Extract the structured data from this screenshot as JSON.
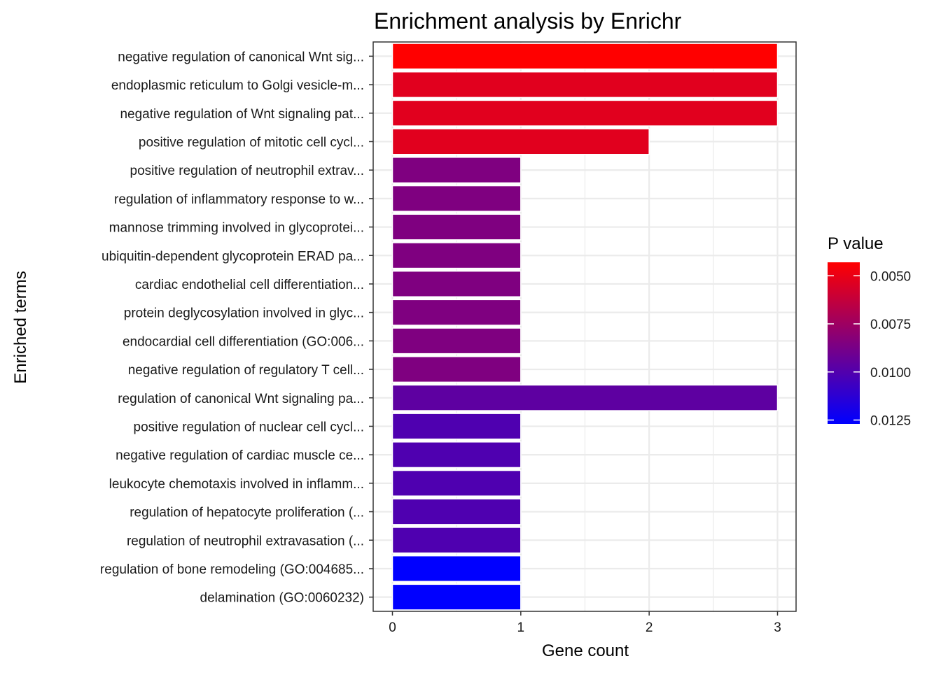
{
  "chart_data": {
    "type": "bar",
    "orientation": "horizontal",
    "title": "Enrichment analysis by Enrichr",
    "xlabel": "Gene count",
    "ylabel": "Enriched terms",
    "xlim": [
      0,
      3
    ],
    "x_ticks": [
      "0",
      "1",
      "2",
      "3"
    ],
    "grid": true,
    "legend": {
      "title": "P value",
      "position": "right",
      "type": "colorbar",
      "range": [
        0.0043,
        0.0127
      ],
      "ticks": [
        "0.0050",
        "0.0075",
        "0.0100",
        "0.0125"
      ],
      "low_color": "#ff0000",
      "high_color": "#0000ff"
    },
    "categories": [
      "negative regulation of canonical Wnt sig...",
      "endoplasmic reticulum to Golgi vesicle-m...",
      "negative regulation of Wnt signaling pat...",
      "positive regulation of mitotic cell cycl...",
      "positive regulation of neutrophil extrav...",
      "regulation of inflammatory response to w...",
      "mannose trimming involved in glycoprotei...",
      "ubiquitin-dependent glycoprotein ERAD pa...",
      "cardiac endothelial cell differentiation...",
      "protein deglycosylation involved in glyc...",
      "endocardial cell differentiation (GO:006...",
      "negative regulation of regulatory T cell...",
      "regulation of canonical Wnt signaling pa...",
      "positive regulation of nuclear cell cycl...",
      "negative regulation of cardiac muscle ce...",
      "leukocyte chemotaxis involved in inflamm...",
      "regulation of hepatocyte proliferation (...",
      "regulation of neutrophil extravasation (...",
      "regulation of bone remodeling (GO:004685...",
      "delamination (GO:0060232)"
    ],
    "values": [
      3,
      3,
      3,
      2,
      1,
      1,
      1,
      1,
      1,
      1,
      1,
      1,
      3,
      1,
      1,
      1,
      1,
      1,
      1,
      1
    ],
    "p_values": [
      0.0043,
      0.0053,
      0.0053,
      0.0053,
      0.0085,
      0.0085,
      0.0085,
      0.0085,
      0.0085,
      0.0085,
      0.0085,
      0.0085,
      0.0096,
      0.0101,
      0.0101,
      0.0101,
      0.0101,
      0.0101,
      0.0127,
      0.0127
    ],
    "colors": {
      "background": "#ffffff",
      "panel_border": "#333333",
      "grid": "#ebebeb",
      "bar_outline": "#ffffff",
      "text": "#000000",
      "tick_text": "#1a1a1a"
    }
  }
}
